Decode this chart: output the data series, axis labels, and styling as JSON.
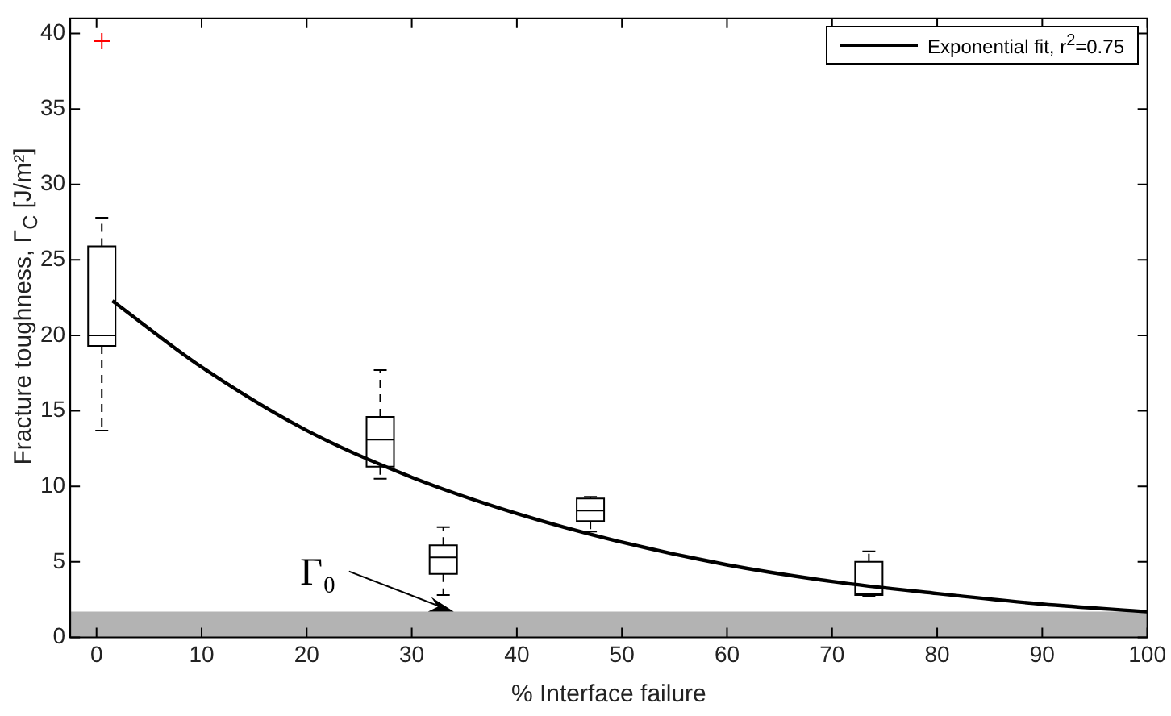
{
  "chart_data": {
    "type": "box",
    "xlabel": "% Interface failure",
    "ylabel": "Fracture toughness, Γ$_{C}$ [J/m²]",
    "xlim": [
      -2.5,
      100
    ],
    "xticks": [
      0,
      10,
      20,
      30,
      40,
      50,
      60,
      70,
      80,
      90,
      100
    ],
    "ylim": [
      0,
      41
    ],
    "yticks": [
      0,
      5,
      10,
      15,
      20,
      25,
      30,
      35,
      40
    ],
    "legend": "top right",
    "grid": false,
    "series": [
      {
        "color": "#000000",
        "x": [
          0.5,
          27,
          33,
          47,
          73.5
        ],
        "boxes": [
          {
            "low": 13.7,
            "q1": 19.3,
            "median": 20,
            "q3": 25.9,
            "high": 27.8,
            "outliers": [
              39.5
            ]
          },
          {
            "low": 10.5,
            "q1": 11.3,
            "median": 13.1,
            "q3": 14.6,
            "high": 17.7
          },
          {
            "low": 2.8,
            "q1": 4.2,
            "median": 5.3,
            "q3": 6.1,
            "high": 7.3
          },
          {
            "low": 7.0,
            "q1": 7.7,
            "median": 8.4,
            "q3": 9.2,
            "high": 9.3
          },
          {
            "low": 2.7,
            "q1": 2.8,
            "median": 2.9,
            "q3": 5.0,
            "high": 5.7
          }
        ]
      },
      {
        "type": "line",
        "name": "Exponential fit, r$^{2}$=0.75",
        "color": "#000000",
        "x": [
          1.5,
          10,
          20,
          30,
          40,
          50,
          60,
          70,
          80,
          90,
          100
        ],
        "values": [
          22.3,
          17.9,
          13.7,
          10.6,
          8.2,
          6.3,
          4.8,
          3.7,
          2.9,
          2.2,
          1.7
        ]
      }
    ],
    "bands": [
      {
        "axis": "y",
        "from": 0,
        "to": 1.7,
        "color": "#b3b3b3"
      }
    ],
    "annotations": [
      {
        "text": "Γ₀",
        "x": 34,
        "y": 1.7
      }
    ]
  }
}
